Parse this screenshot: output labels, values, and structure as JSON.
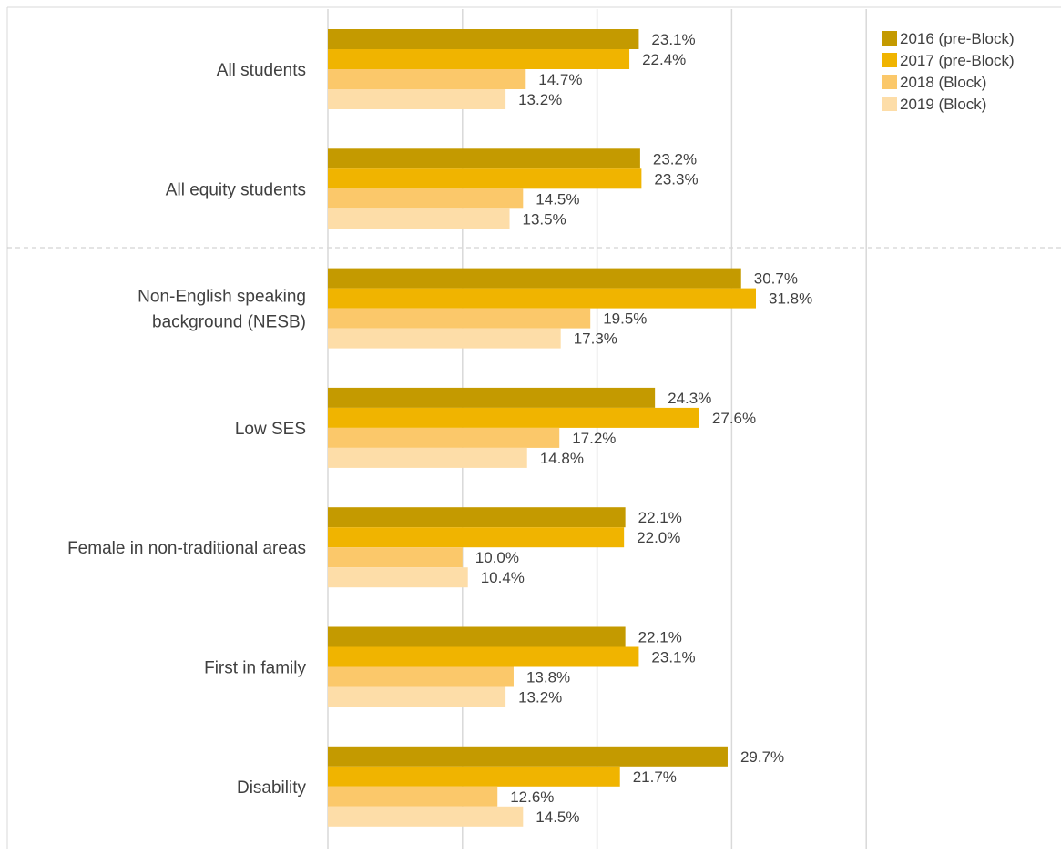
{
  "chart_data": {
    "type": "bar",
    "orientation": "horizontal",
    "categories": [
      "All students",
      "All equity students",
      "Non-English speaking background (NESB)",
      "Low SES",
      "Female in non-traditional areas",
      "First in family",
      "Disability"
    ],
    "category_lines": [
      [
        "All students"
      ],
      [
        "All equity students"
      ],
      [
        "Non-English speaking",
        "background (NESB)"
      ],
      [
        "Low SES"
      ],
      [
        "Female in non-traditional areas"
      ],
      [
        "First in family"
      ],
      [
        "Disability"
      ]
    ],
    "series": [
      {
        "name": "2016 (pre-Block)",
        "color": "#C49A00",
        "values": [
          23.1,
          23.2,
          30.7,
          24.3,
          22.1,
          22.1,
          29.7
        ],
        "labels": [
          "23.1%",
          "23.2%",
          "30.7%",
          "24.3%",
          "22.1%",
          "22.1%",
          "29.7%"
        ]
      },
      {
        "name": "2017 (pre-Block)",
        "color": "#F0B400",
        "values": [
          22.4,
          23.3,
          31.8,
          27.6,
          22.0,
          23.1,
          21.7
        ],
        "labels": [
          "22.4%",
          "23.3%",
          "31.8%",
          "27.6%",
          "22.0%",
          "23.1%",
          "21.7%"
        ]
      },
      {
        "name": "2018 (Block)",
        "color": "#FBC86A",
        "values": [
          14.7,
          14.5,
          19.5,
          17.2,
          10.0,
          13.8,
          12.6
        ],
        "labels": [
          "14.7%",
          "14.5%",
          "19.5%",
          "17.2%",
          "10.0%",
          "13.8%",
          "12.6%"
        ]
      },
      {
        "name": "2019 (Block)",
        "color": "#FDDDA8",
        "values": [
          13.2,
          13.5,
          17.3,
          14.8,
          10.4,
          13.2,
          14.5
        ],
        "labels": [
          "13.2%",
          "13.5%",
          "17.3%",
          "14.8%",
          "10.4%",
          "13.2%",
          "14.5%"
        ]
      }
    ],
    "xlim": [
      0,
      40
    ],
    "grid": true,
    "legend_position": "top-right",
    "value_format": "percent"
  }
}
